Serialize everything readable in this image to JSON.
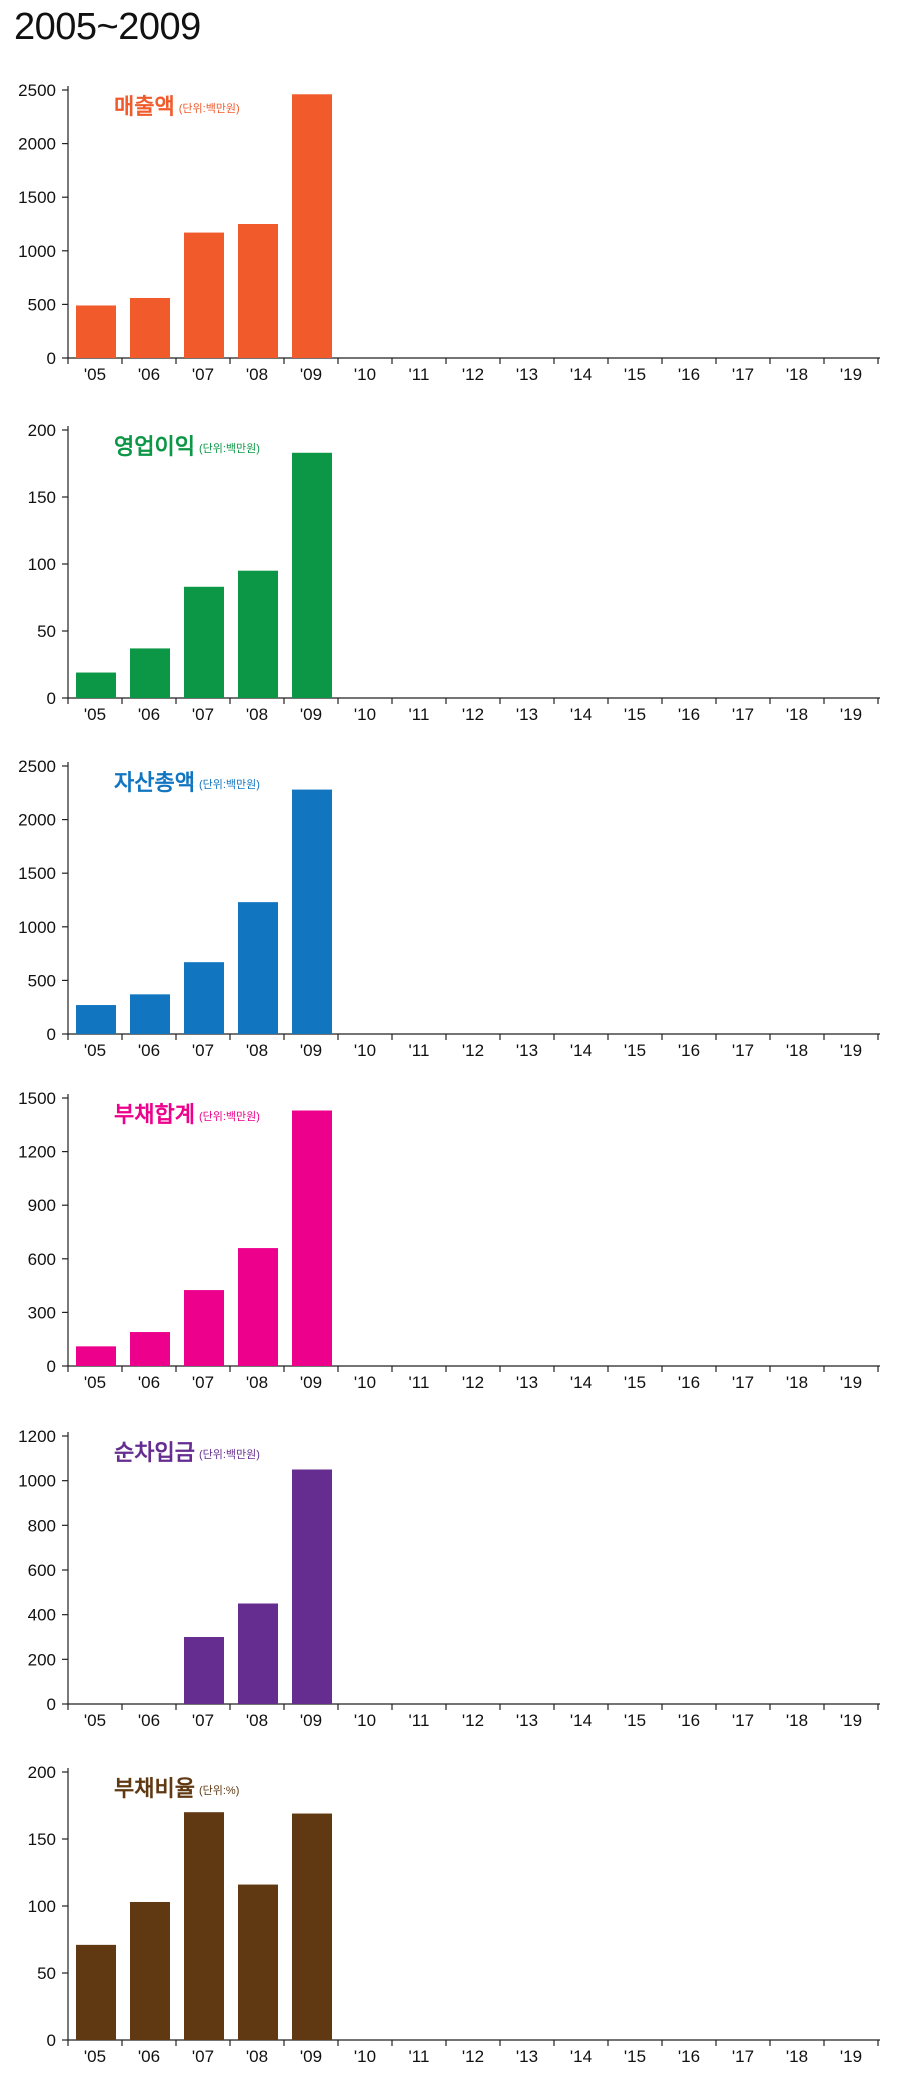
{
  "page_title": "2005~2009",
  "categories": [
    "'05",
    "'06",
    "'07",
    "'08",
    "'09",
    "'10",
    "'11",
    "'12",
    "'13",
    "'14",
    "'15",
    "'16",
    "'17",
    "'18",
    "'19"
  ],
  "chart_data": [
    {
      "type": "bar",
      "title": "매출액",
      "unit_note": "(단위:백만원)",
      "color": "#f15a2b",
      "ylim": [
        0,
        2500
      ],
      "yticks": [
        0,
        500,
        1000,
        1500,
        2000,
        2500
      ],
      "values": [
        490,
        560,
        1170,
        1250,
        2460,
        null,
        null,
        null,
        null,
        null,
        null,
        null,
        null,
        null,
        null
      ]
    },
    {
      "type": "bar",
      "title": "영업이익",
      "unit_note": "(단위:백만원)",
      "color": "#0c9747",
      "ylim": [
        0,
        200
      ],
      "yticks": [
        0,
        50,
        100,
        150,
        200
      ],
      "values": [
        19,
        37,
        83,
        95,
        183,
        null,
        null,
        null,
        null,
        null,
        null,
        null,
        null,
        null,
        null
      ]
    },
    {
      "type": "bar",
      "title": "자산총액",
      "unit_note": "(단위:백만원)",
      "color": "#1175c0",
      "ylim": [
        0,
        2500
      ],
      "yticks": [
        0,
        500,
        1000,
        1500,
        2000,
        2500
      ],
      "values": [
        270,
        370,
        670,
        1230,
        2280,
        null,
        null,
        null,
        null,
        null,
        null,
        null,
        null,
        null,
        null
      ]
    },
    {
      "type": "bar",
      "title": "부채합계",
      "unit_note": "(단위:백만원)",
      "color": "#ec008c",
      "ylim": [
        0,
        1500
      ],
      "yticks": [
        0,
        300,
        600,
        900,
        1200,
        1500
      ],
      "values": [
        110,
        190,
        425,
        660,
        1430,
        null,
        null,
        null,
        null,
        null,
        null,
        null,
        null,
        null,
        null
      ]
    },
    {
      "type": "bar",
      "title": "순차입금",
      "unit_note": "(단위:백만원)",
      "color": "#662d91",
      "ylim": [
        0,
        1200
      ],
      "yticks": [
        0,
        200,
        400,
        600,
        800,
        1000,
        1200
      ],
      "values": [
        null,
        null,
        300,
        450,
        1050,
        null,
        null,
        null,
        null,
        null,
        null,
        null,
        null,
        null,
        null
      ]
    },
    {
      "type": "bar",
      "title": "부채비율",
      "unit_note": "(단위:%)",
      "color": "#603913",
      "ylim": [
        0,
        200
      ],
      "yticks": [
        0,
        50,
        100,
        150,
        200
      ],
      "values": [
        71,
        103,
        170,
        116,
        169,
        null,
        null,
        null,
        null,
        null,
        null,
        null,
        null,
        null,
        null
      ]
    }
  ]
}
